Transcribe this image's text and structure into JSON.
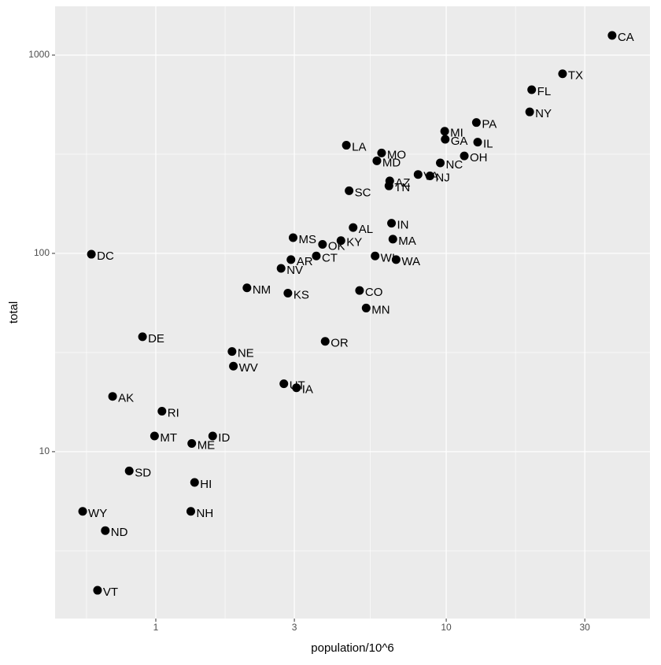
{
  "chart_data": {
    "type": "scatter",
    "x_label": "population/10^6",
    "y_label": "total",
    "log_x": true,
    "log_y": true,
    "grid": true,
    "color": "#000000",
    "xlim": [
      0.45,
      50.3
    ],
    "ylim": [
      1.44,
      1762
    ],
    "xticks": [
      1,
      3,
      10,
      30
    ],
    "yticks": [
      10,
      100,
      1000
    ],
    "labels": [
      "AL",
      "AK",
      "AZ",
      "AR",
      "CA",
      "CO",
      "CT",
      "DE",
      "DC",
      "FL",
      "GA",
      "HI",
      "ID",
      "IL",
      "IN",
      "IA",
      "KS",
      "KY",
      "LA",
      "ME",
      "MD",
      "MA",
      "MI",
      "MN",
      "MS",
      "MO",
      "MT",
      "NE",
      "NV",
      "NH",
      "NJ",
      "NM",
      "NY",
      "NC",
      "ND",
      "OH",
      "OK",
      "OR",
      "PA",
      "RI",
      "SC",
      "SD",
      "TN",
      "TX",
      "UT",
      "VT",
      "VA",
      "WA",
      "WV",
      "WI",
      "WY"
    ],
    "x": [
      4.78,
      0.71,
      6.39,
      2.92,
      37.25,
      5.03,
      3.57,
      0.9,
      0.6,
      19.69,
      9.92,
      1.36,
      1.57,
      12.83,
      6.48,
      3.05,
      2.85,
      4.34,
      4.53,
      1.33,
      5.77,
      6.55,
      9.88,
      5.3,
      2.97,
      5.99,
      0.99,
      1.83,
      2.7,
      1.32,
      8.79,
      2.06,
      19.38,
      9.54,
      0.67,
      11.54,
      3.75,
      3.83,
      12.7,
      1.05,
      4.63,
      0.81,
      6.35,
      25.15,
      2.76,
      0.63,
      8.0,
      6.72,
      1.85,
      5.69,
      0.56
    ],
    "values": [
      135,
      19,
      232,
      93,
      1257,
      65,
      97,
      38,
      99,
      669,
      376,
      7,
      12,
      364,
      142,
      21,
      63,
      116,
      351,
      11,
      293,
      118,
      413,
      53,
      120,
      321,
      12,
      32,
      84,
      5,
      246,
      67,
      517,
      286,
      4,
      310,
      111,
      36,
      457,
      16,
      207,
      8,
      219,
      805,
      22,
      2,
      250,
      93,
      27,
      97,
      5
    ]
  }
}
